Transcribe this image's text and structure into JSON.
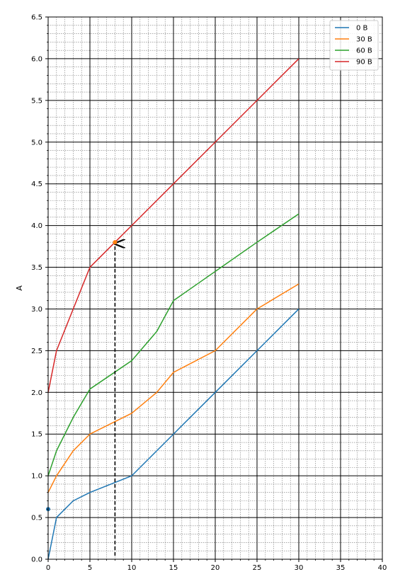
{
  "chart_data": {
    "type": "line",
    "title": "",
    "xlabel": "",
    "ylabel": "A",
    "xlim": [
      0,
      40
    ],
    "ylim": [
      0,
      6.5
    ],
    "x_ticks": [
      "0",
      "5",
      "10",
      "15",
      "20",
      "25",
      "30",
      "35",
      "40"
    ],
    "y_ticks": [
      "0.0",
      "0.5",
      "1.0",
      "1.5",
      "2.0",
      "2.5",
      "3.0",
      "3.5",
      "4.0",
      "4.5",
      "5.0",
      "5.5",
      "6.0",
      "6.5"
    ],
    "grid": {
      "major": true,
      "minor": true
    },
    "legend_position": "top-right",
    "series": [
      {
        "name": "0 B",
        "color": "#1f77b4",
        "x": [
          0,
          1,
          3,
          5,
          10,
          15,
          20,
          25,
          30
        ],
        "y": [
          0,
          0.5,
          0.7,
          0.8,
          1.0,
          1.5,
          2.0,
          2.5,
          3.0
        ]
      },
      {
        "name": "30 B",
        "color": "#ff7f0e",
        "x": [
          0,
          1,
          3,
          5,
          10,
          13,
          15,
          20,
          25,
          30
        ],
        "y": [
          0.8,
          1.0,
          1.3,
          1.5,
          1.75,
          2.0,
          2.24,
          2.5,
          3.0,
          3.3
        ]
      },
      {
        "name": "60 B",
        "color": "#2ca02c",
        "x": [
          0,
          1,
          3,
          5,
          10,
          13,
          15,
          20,
          25,
          30
        ],
        "y": [
          1.0,
          1.3,
          1.7,
          2.04,
          2.38,
          2.73,
          3.1,
          3.45,
          3.8,
          4.14
        ]
      },
      {
        "name": "90 B",
        "color": "#d62728",
        "x": [
          0,
          1,
          5,
          8,
          10,
          15,
          20,
          25,
          30
        ],
        "y": [
          2.0,
          2.5,
          3.5,
          3.8,
          4.0,
          4.5,
          5.0,
          5.5,
          6.0
        ]
      }
    ],
    "markers": [
      {
        "x": 0,
        "y": 0.6,
        "color": "#1f77b4"
      },
      {
        "x": 8,
        "y": 3.8,
        "color": "#ff7f0e"
      }
    ],
    "annotation_arrow": {
      "x": 8,
      "y_from": 0,
      "y_to": 3.8,
      "style": "dashed",
      "color": "#000000"
    }
  }
}
